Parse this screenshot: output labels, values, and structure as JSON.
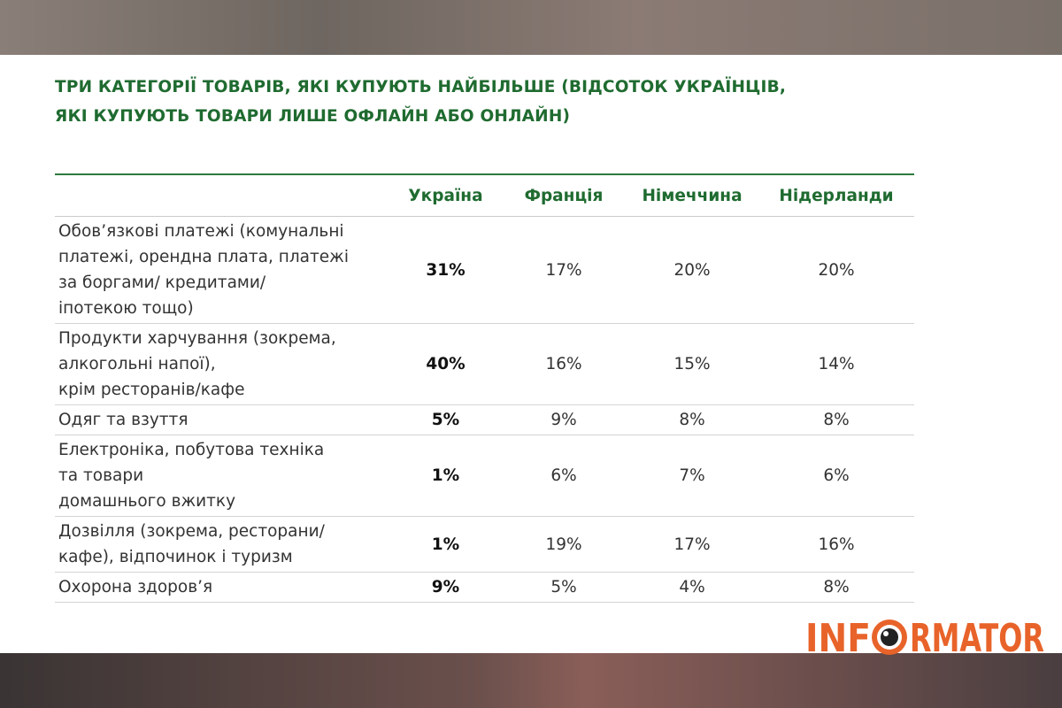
{
  "title": "ТРИ КАТЕГОРІЇ ТОВАРІВ, ЯКІ КУПУЮТЬ НАЙБІЛЬШЕ (ВІДСОТОК УКРАЇНЦІВ,\nЯКІ КУПУЮТЬ ТОВАРИ ЛИШЕ ОФЛАЙН АБО ОНЛАЙН)",
  "table": {
    "columns": [
      "Україна",
      "Франція",
      "Німеччина",
      "Нідерланди"
    ],
    "rows": [
      {
        "label": "Обов’язкові платежі (комунальні\nплатежі, орендна плата, платежі\nза боргами/ кредитами/\nіпотекою тощо)",
        "values": [
          "31%",
          "17%",
          "20%",
          "20%"
        ]
      },
      {
        "label": "Продукти харчування (зокрема,\nалкогольні напої),\nкрім ресторанів/кафе",
        "values": [
          "40%",
          "16%",
          "15%",
          "14%"
        ]
      },
      {
        "label": "Одяг та взуття",
        "values": [
          "5%",
          "9%",
          "8%",
          "8%"
        ]
      },
      {
        "label": "Електроніка, побутова техніка\nта товари\nдомашнього вжитку",
        "values": [
          "1%",
          "6%",
          "7%",
          "6%"
        ]
      },
      {
        "label": "Дозвілля (зокрема, ресторани/\nкафе), відпочинок і туризм",
        "values": [
          "1%",
          "19%",
          "17%",
          "16%"
        ]
      },
      {
        "label": "Охорона здоров’я",
        "values": [
          "9%",
          "5%",
          "4%",
          "8%"
        ]
      }
    ]
  },
  "logo": {
    "before": "INF",
    "after": "RMATOR"
  }
}
